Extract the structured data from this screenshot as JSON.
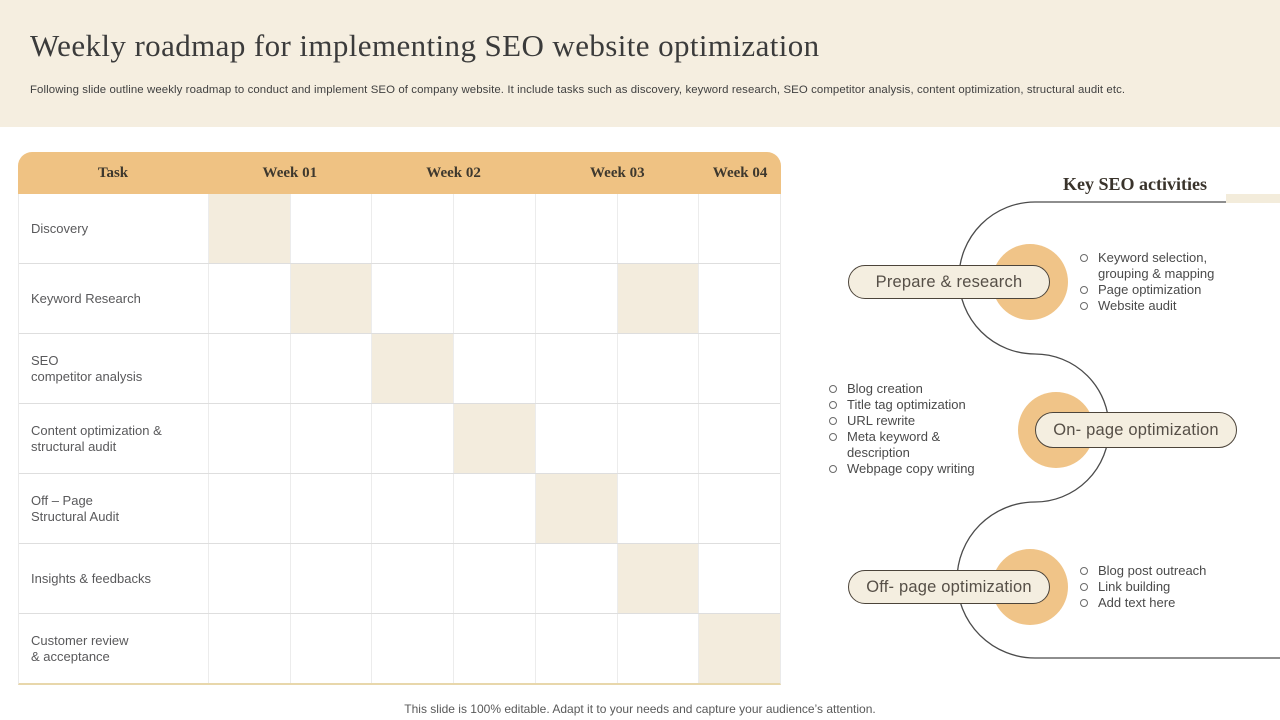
{
  "slide": {
    "title": "Weekly roadmap for implementing SEO website optimization",
    "subtitle": "Following slide outline weekly roadmap to conduct and implement SEO of company website. It include tasks such as discovery, keyword research, SEO competitor analysis, content optimization, structural audit etc.",
    "footer": "This slide is 100% editable. Adapt it to your needs and capture your audience’s attention."
  },
  "colors": {
    "top_band_cream": "#f5eee0",
    "header_tan": "#efc283",
    "circle_orange": "#f0c488",
    "cell_shade": "#f3ecdd",
    "pill_fill": "#f4eee0",
    "pill_border": "#4c443a",
    "connector_line": "#4b4b4b",
    "table_bottom_border": "#e8d7ab"
  },
  "gantt": {
    "headers": [
      "Task",
      "Week 01",
      "Week 02",
      "Week 03",
      "Week 04"
    ],
    "weeks_column_span": [
      2,
      2,
      2,
      1
    ],
    "total_cols": 7,
    "tasks": [
      {
        "label": "Discovery",
        "shaded_cols": [
          1
        ]
      },
      {
        "label": "Keyword Research",
        "shaded_cols": [
          2,
          6
        ]
      },
      {
        "label": "SEO\ncompetitor analysis",
        "shaded_cols": [
          3
        ]
      },
      {
        "label": "Content optimization &\nstructural audit",
        "shaded_cols": [
          4
        ]
      },
      {
        "label": "Off – Page\nStructural Audit",
        "shaded_cols": [
          5
        ]
      },
      {
        "label": "Insights & feedbacks",
        "shaded_cols": [
          6
        ]
      },
      {
        "label": "Customer review\n& acceptance",
        "shaded_cols": [
          7
        ]
      }
    ]
  },
  "activities": {
    "title": "Key SEO activities",
    "groups": [
      {
        "pill": "Prepare & research",
        "bullets_side": "right",
        "bullets": [
          "Keyword selection,\ngrouping & mapping",
          "Page optimization",
          "Website audit"
        ]
      },
      {
        "pill": "On- page optimization",
        "bullets_side": "left",
        "bullets": [
          "Blog creation",
          "Title tag optimization",
          "URL rewrite",
          "Meta keyword &\ndescription",
          "Webpage copy writing"
        ]
      },
      {
        "pill": "Off- page optimization",
        "bullets_side": "right",
        "bullets": [
          "Blog post outreach",
          "Link building",
          "Add text here"
        ]
      }
    ]
  }
}
